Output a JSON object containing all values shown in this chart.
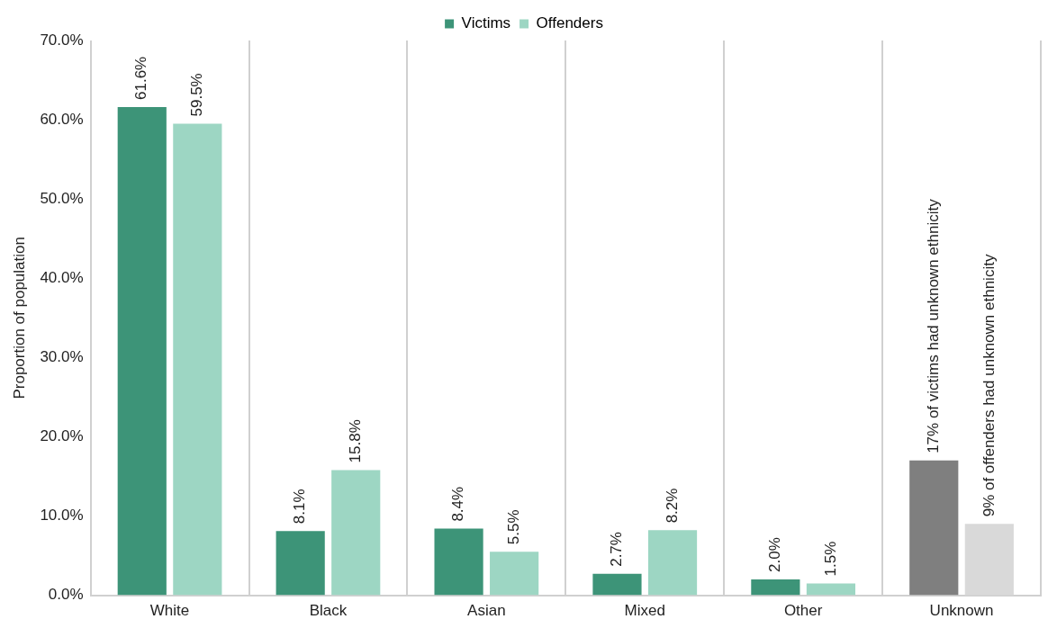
{
  "chart_data": {
    "type": "bar",
    "ylabel": "Proportion of population",
    "categories": [
      "White",
      "Black",
      "Asian",
      "Mixed",
      "Other",
      "Unknown"
    ],
    "series": [
      {
        "name": "Victims",
        "color": "#3d9478",
        "colors": [
          "#3d9478",
          "#3d9478",
          "#3d9478",
          "#3d9478",
          "#3d9478",
          "#7f7f7f"
        ],
        "values": [
          61.6,
          8.1,
          8.4,
          2.7,
          2.0,
          17
        ],
        "value_labels": [
          "61.6%",
          "8.1%",
          "8.4%",
          "2.7%",
          "2.0%",
          "17% of victims had unknown ethnicity"
        ]
      },
      {
        "name": "Offenders",
        "color": "#9dd6c3",
        "colors": [
          "#9dd6c3",
          "#9dd6c3",
          "#9dd6c3",
          "#9dd6c3",
          "#9dd6c3",
          "#d9d9d9"
        ],
        "values": [
          59.5,
          15.8,
          5.5,
          8.2,
          1.5,
          9
        ],
        "value_labels": [
          "59.5%",
          "15.8%",
          "5.5%",
          "8.2%",
          "1.5%",
          "9% of offenders had unknown ethnicity"
        ]
      }
    ],
    "ylim": [
      0,
      70
    ],
    "yticks": [
      {
        "value": 0,
        "label": "0.0%"
      },
      {
        "value": 10,
        "label": "10.0%"
      },
      {
        "value": 20,
        "label": "20.0%"
      },
      {
        "value": 30,
        "label": "30.0%"
      },
      {
        "value": 40,
        "label": "40.0%"
      },
      {
        "value": 50,
        "label": "50.0%"
      },
      {
        "value": 60,
        "label": "60.0%"
      },
      {
        "value": 70,
        "label": "70.0%"
      }
    ],
    "grid": "x",
    "legend": "top"
  }
}
